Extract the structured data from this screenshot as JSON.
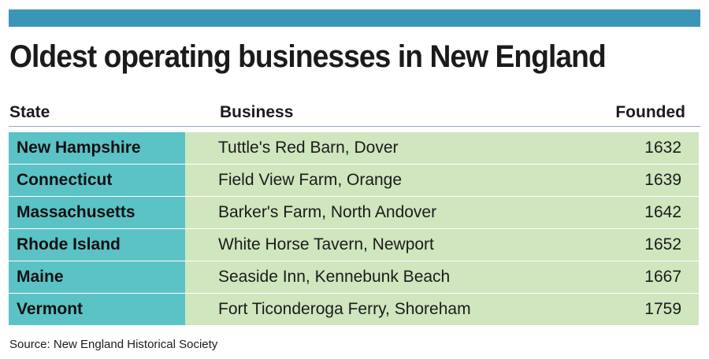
{
  "colors": {
    "top_bar": "#3b95b7",
    "state_cell": "#5bc2c6",
    "row_cell": "#cfe6be",
    "header_rule": "#9aa8c4"
  },
  "title": "Oldest operating businesses in New England",
  "chart_data": {
    "type": "table",
    "title": "Oldest operating businesses in New England",
    "columns": [
      "State",
      "Business",
      "Founded"
    ],
    "rows": [
      {
        "state": "New Hampshire",
        "business": "Tuttle's Red Barn, Dover",
        "founded": "1632"
      },
      {
        "state": "Connecticut",
        "business": "Field View Farm, Orange",
        "founded": "1639"
      },
      {
        "state": "Massachusetts",
        "business": "Barker's Farm, North Andover",
        "founded": "1642"
      },
      {
        "state": "Rhode Island",
        "business": "White Horse Tavern, Newport",
        "founded": "1652"
      },
      {
        "state": "Maine",
        "business": "Seaside Inn, Kennebunk Beach",
        "founded": "1667"
      },
      {
        "state": "Vermont",
        "business": "Fort Ticonderoga Ferry, Shoreham",
        "founded": "1759"
      }
    ]
  },
  "source": "Source: New England Historical Society"
}
